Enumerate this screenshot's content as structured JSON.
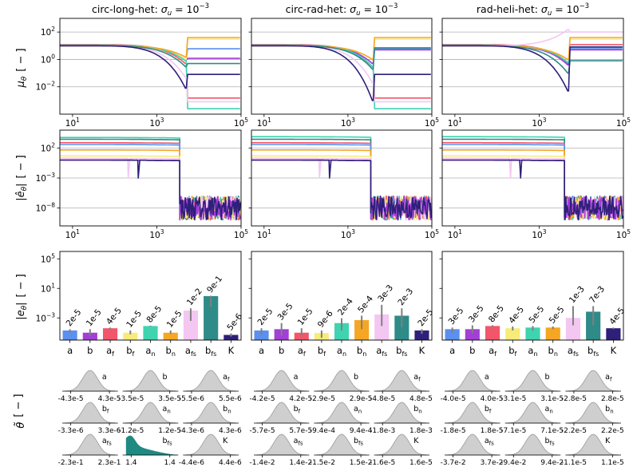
{
  "figure": {
    "columns": [
      {
        "title_prefix": "circ-long-het: ",
        "sigma_symbol": "σ",
        "sigma_sub": "u",
        "sigma_eq": " = 10",
        "sigma_exp": "−3"
      },
      {
        "title_prefix": "circ-rad-het: ",
        "sigma_symbol": "σ",
        "sigma_sub": "u",
        "sigma_eq": " = 10",
        "sigma_exp": "−3"
      },
      {
        "title_prefix": "rad-heli-het: ",
        "sigma_symbol": "σ",
        "sigma_sub": "u",
        "sigma_eq": " = 10",
        "sigma_exp": "−3"
      }
    ],
    "row_labels": {
      "mu": {
        "symbol": "μ",
        "sub": "θ",
        "unit": "[ − ]"
      },
      "ehat": {
        "symbol": "|ê",
        "sub": "θ",
        "close": "|",
        "unit": "[ − ]"
      },
      "e": {
        "symbol": "|e",
        "sub": "θ",
        "close": "|",
        "unit": "[ − ]"
      },
      "theta": {
        "symbol": "θ̃",
        "unit": "[ − ]"
      }
    }
  },
  "colors": {
    "a": "#5b8ff0",
    "b": "#a23fd6",
    "a_f": "#f2566a",
    "b_f": "#f7ec7a",
    "a_n": "#3fd3b0",
    "b_n": "#f5a623",
    "a_fs": "#f4c6f2",
    "b_fs": "#2e8b88",
    "K": "#2e1f7a",
    "grid": "#b0b0b0",
    "density_gray": "#cfcfcf",
    "density_teal": "#1f8a82"
  },
  "chart_data": [
    {
      "panel": "mu_theta",
      "type": "line",
      "log_x": true,
      "log_y": true,
      "xlim": [
        5,
        100000
      ],
      "ylim": [
        0.0001,
        1000
      ],
      "x_ticks": [
        {
          "base": "10",
          "exp": "1",
          "value": 10
        },
        {
          "base": "10",
          "exp": "3",
          "value": 1000
        },
        {
          "base": "10",
          "exp": "5",
          "value": 100000
        }
      ],
      "y_ticks": [
        {
          "base": "10",
          "exp": "2",
          "value": 100
        },
        {
          "base": "10",
          "exp": "0",
          "value": 1
        },
        {
          "base": "10",
          "exp": "−2",
          "value": 0.01
        }
      ],
      "grid": "horizontal",
      "columns": [
        {
          "switch_x": 5000,
          "series": [
            {
              "param": "a",
              "start": 10,
              "dip": 1.0,
              "end": 6
            },
            {
              "param": "b",
              "start": 11,
              "dip": 0.9,
              "end": 1.2
            },
            {
              "param": "a_f",
              "start": 12,
              "dip": 0.5,
              "end": 0.0015
            },
            {
              "param": "b_f",
              "start": 10,
              "dip": 1.0,
              "end": 30
            },
            {
              "param": "a_n",
              "start": 11,
              "dip": 0.8,
              "end": 0.00025
            },
            {
              "param": "b_n",
              "start": 10,
              "dip": 1.5,
              "end": 40
            },
            {
              "param": "a_fs",
              "start": 10,
              "dip": 0.05,
              "end": 0.0008
            },
            {
              "param": "b_fs",
              "start": 10,
              "dip": 0.3,
              "end": 0.5
            },
            {
              "param": "K",
              "start": 10,
              "dip": 0.008,
              "end": 0.08
            }
          ]
        },
        {
          "switch_x": 4000,
          "series": [
            {
              "param": "a",
              "start": 10,
              "dip": 0.5,
              "end": 6
            },
            {
              "param": "b",
              "start": 11,
              "dip": 0.5,
              "end": 5
            },
            {
              "param": "a_f",
              "start": 12,
              "dip": 0.2,
              "end": 0.0015
            },
            {
              "param": "b_f",
              "start": 10,
              "dip": 1.0,
              "end": 30
            },
            {
              "param": "a_n",
              "start": 11,
              "dip": 0.3,
              "end": 0.00025
            },
            {
              "param": "b_n",
              "start": 10,
              "dip": 1.0,
              "end": 40
            },
            {
              "param": "a_fs",
              "start": 10,
              "dip": 0.02,
              "end": 0.0008
            },
            {
              "param": "b_fs",
              "start": 10,
              "dip": 0.2,
              "end": 7
            },
            {
              "param": "K",
              "start": 10,
              "dip": 0.001,
              "end": 0.08
            }
          ]
        },
        {
          "switch_x": 5000,
          "series": [
            {
              "param": "a",
              "start": 10,
              "dip": 0.5,
              "end": 6
            },
            {
              "param": "b",
              "start": 11,
              "dip": 0.4,
              "end": 5
            },
            {
              "param": "a_f",
              "start": 12,
              "dip": 0.6,
              "end": 12
            },
            {
              "param": "b_f",
              "start": 10,
              "dip": 1.0,
              "end": 30
            },
            {
              "param": "a_n",
              "start": 11,
              "dip": 0.6,
              "end": 8
            },
            {
              "param": "b_n",
              "start": 10,
              "dip": 1.0,
              "end": 40
            },
            {
              "param": "a_fs",
              "start": 10,
              "dip": 150,
              "end": 100
            },
            {
              "param": "b_fs",
              "start": 10,
              "dip": 0.1,
              "end": 0.8
            },
            {
              "param": "K",
              "start": 10,
              "dip": 0.005,
              "end": 8
            }
          ]
        }
      ]
    },
    {
      "panel": "ehat_theta",
      "type": "line",
      "log_x": true,
      "log_y": true,
      "xlim": [
        5,
        100000
      ],
      "ylim": [
        1e-11,
        100000.0
      ],
      "x_ticks": [
        {
          "base": "10",
          "exp": "1",
          "value": 10
        },
        {
          "base": "10",
          "exp": "3",
          "value": 1000
        },
        {
          "base": "10",
          "exp": "5",
          "value": 100000
        }
      ],
      "y_ticks": [
        {
          "base": "10",
          "exp": "2",
          "value": 100
        },
        {
          "base": "10",
          "exp": "−3",
          "value": 0.001
        },
        {
          "base": "10",
          "exp": "−8",
          "value": 1e-08
        }
      ],
      "grid": "horizontal",
      "columns": [
        {
          "noise_from_x": 3500,
          "noise_range": [
            1e-10,
            1e-06
          ],
          "series": [
            {
              "param": "a_n",
              "level": 6000
            },
            {
              "param": "b_fs",
              "level": 3000
            },
            {
              "param": "a_f",
              "level": 800
            },
            {
              "param": "a",
              "level": 400
            },
            {
              "param": "b_n",
              "level": 50
            },
            {
              "param": "b_f",
              "level": 5
            },
            {
              "param": "a_fs",
              "level": 2
            },
            {
              "param": "b",
              "level": 1
            },
            {
              "param": "K",
              "level": 1
            }
          ]
        },
        {
          "noise_from_x": 3500,
          "noise_range": [
            1e-10,
            1e-06
          ],
          "series": [
            {
              "param": "a_n",
              "level": 8000
            },
            {
              "param": "b_fs",
              "level": 3000
            },
            {
              "param": "a_f",
              "level": 800
            },
            {
              "param": "a",
              "level": 400
            },
            {
              "param": "b_n",
              "level": 50
            },
            {
              "param": "b_f",
              "level": 5
            },
            {
              "param": "a_fs",
              "level": 2
            },
            {
              "param": "b",
              "level": 1
            },
            {
              "param": "K",
              "level": 1
            }
          ]
        },
        {
          "noise_from_x": 4000,
          "noise_range": [
            1e-10,
            1e-06
          ],
          "series": [
            {
              "param": "a_n",
              "level": 8000
            },
            {
              "param": "b_fs",
              "level": 3000
            },
            {
              "param": "a_f",
              "level": 800
            },
            {
              "param": "a",
              "level": 400
            },
            {
              "param": "b_n",
              "level": 50
            },
            {
              "param": "b_f",
              "level": 5
            },
            {
              "param": "a_fs",
              "level": 2
            },
            {
              "param": "b",
              "level": 1
            },
            {
              "param": "K",
              "level": 1
            }
          ]
        }
      ]
    },
    {
      "panel": "e_theta",
      "type": "bar",
      "log_y": true,
      "ylim": [
        1e-06,
        1000000.0
      ],
      "y_ticks": [
        {
          "base": "10",
          "exp": "5",
          "value": 100000
        },
        {
          "base": "10",
          "exp": "1",
          "value": 10
        },
        {
          "base": "10",
          "exp": "−3",
          "value": 0.001
        }
      ],
      "categories": [
        {
          "main": "a",
          "sub": ""
        },
        {
          "main": "b",
          "sub": ""
        },
        {
          "main": "a",
          "sub": "f"
        },
        {
          "main": "b",
          "sub": "f"
        },
        {
          "main": "a",
          "sub": "n"
        },
        {
          "main": "b",
          "sub": "n"
        },
        {
          "main": "a",
          "sub": "fs"
        },
        {
          "main": "b",
          "sub": "fs"
        },
        {
          "main": "K",
          "sub": ""
        }
      ],
      "series_colors": [
        "a",
        "b",
        "a_f",
        "b_f",
        "a_n",
        "b_n",
        "a_fs",
        "b_fs",
        "K"
      ],
      "columns": [
        {
          "values": [
            2e-05,
            1e-05,
            4e-05,
            1e-05,
            8e-05,
            1e-05,
            0.01,
            0.9,
            5e-06
          ],
          "labels": [
            "2e-5",
            "1e-5",
            "4e-5",
            "1e-5",
            "8e-5",
            "1e-5",
            "1e-2",
            "9e-1",
            "5e-6"
          ],
          "err_low": [
            1e-05,
            4e-06,
            3e-05,
            6e-06,
            7e-05,
            7e-06,
            0.0004,
            0.03,
            3e-06
          ],
          "err_high": [
            3e-05,
            3e-05,
            5e-05,
            2e-05,
            9e-05,
            2e-05,
            0.02,
            1.0,
            8e-06
          ]
        },
        {
          "values": [
            2e-05,
            3e-05,
            1e-05,
            9e-06,
            0.0002,
            0.0005,
            0.003,
            0.002,
            2e-05
          ],
          "labels": [
            "2e-5",
            "3e-5",
            "1e-5",
            "9e-6",
            "2e-4",
            "5e-4",
            "3e-3",
            "2e-3",
            "2e-5"
          ],
          "err_low": [
            6e-06,
            4e-06,
            3e-06,
            2e-06,
            2e-05,
            3e-05,
            8e-05,
            6e-05,
            7e-06
          ],
          "err_high": [
            4e-05,
            0.0002,
            4e-05,
            2e-05,
            0.0009,
            0.002,
            0.06,
            0.02,
            3e-05
          ]
        },
        {
          "values": [
            3e-05,
            3e-05,
            8e-05,
            4e-05,
            5e-05,
            5e-05,
            0.001,
            0.007,
            4e-05
          ],
          "labels": [
            "3e-5",
            "3e-5",
            "8e-5",
            "4e-5",
            "5e-5",
            "5e-5",
            "1e-3",
            "7e-3",
            "4e-5"
          ],
          "err_low": [
            1e-05,
            8e-06,
            6e-05,
            2e-05,
            2e-05,
            3e-05,
            0.0001,
            0.0001,
            3e-05
          ],
          "err_high": [
            5e-05,
            0.0001,
            0.0001,
            7e-05,
            8e-05,
            7e-05,
            0.04,
            0.04,
            5e-05
          ]
        }
      ]
    },
    {
      "panel": "theta_tilde",
      "type": "area",
      "order": [
        "a",
        "b",
        "a_f",
        "b_f",
        "a_n",
        "b_n",
        "a_fs",
        "b_fs",
        "K"
      ],
      "columns": [
        {
          "cells": [
            {
              "name": "a",
              "sub": "",
              "lo": "-4.3e-5",
              "hi": "4.3e-5"
            },
            {
              "name": "b",
              "sub": "",
              "lo": "-3.5e-5",
              "hi": "3.5e-5"
            },
            {
              "name": "a",
              "sub": "f",
              "lo": "-5.5e-6",
              "hi": "5.5e-6"
            },
            {
              "name": "b",
              "sub": "f",
              "lo": "-3.3e-6",
              "hi": "3.3e-6"
            },
            {
              "name": "a",
              "sub": "n",
              "lo": "-1.2e-5",
              "hi": "1.2e-5"
            },
            {
              "name": "b",
              "sub": "n",
              "lo": "-4.3e-6",
              "hi": "4.3e-6"
            },
            {
              "name": "a",
              "sub": "fs",
              "lo": "-2.3e-1",
              "hi": "2.3e-1"
            },
            {
              "name": "b",
              "sub": "fs",
              "lo": "1.4",
              "hi": "1.4",
              "skewed": true
            },
            {
              "name": "K",
              "sub": "",
              "lo": "-4.4e-6",
              "hi": "4.4e-6"
            }
          ]
        },
        {
          "cells": [
            {
              "name": "a",
              "sub": "",
              "lo": "-4.2e-5",
              "hi": "4.2e-5"
            },
            {
              "name": "b",
              "sub": "",
              "lo": "-2.9e-5",
              "hi": "2.9e-5"
            },
            {
              "name": "a",
              "sub": "f",
              "lo": "-4.8e-5",
              "hi": "4.8e-5"
            },
            {
              "name": "b",
              "sub": "f",
              "lo": "-5.7e-5",
              "hi": "5.7e-5"
            },
            {
              "name": "a",
              "sub": "n",
              "lo": "-9.4e-4",
              "hi": "9.4e-4"
            },
            {
              "name": "b",
              "sub": "n",
              "lo": "-1.8e-3",
              "hi": "1.8e-3"
            },
            {
              "name": "a",
              "sub": "fs",
              "lo": "-1.4e-2",
              "hi": "1.4e-2"
            },
            {
              "name": "b",
              "sub": "fs",
              "lo": "-1.5e-2",
              "hi": "1.5e-2"
            },
            {
              "name": "K",
              "sub": "",
              "lo": "-1.6e-5",
              "hi": "1.6e-5"
            }
          ]
        },
        {
          "cells": [
            {
              "name": "a",
              "sub": "",
              "lo": "-4.0e-5",
              "hi": "4.0e-5"
            },
            {
              "name": "b",
              "sub": "",
              "lo": "-3.1e-5",
              "hi": "3.1e-5"
            },
            {
              "name": "a",
              "sub": "f",
              "lo": "-2.8e-5",
              "hi": "2.8e-5"
            },
            {
              "name": "b",
              "sub": "f",
              "lo": "-1.8e-5",
              "hi": "1.8e-5"
            },
            {
              "name": "a",
              "sub": "n",
              "lo": "-7.1e-5",
              "hi": "7.1e-5"
            },
            {
              "name": "b",
              "sub": "n",
              "lo": "-2.2e-5",
              "hi": "2.2e-5"
            },
            {
              "name": "a",
              "sub": "fs",
              "lo": "-3.7e-2",
              "hi": "3.7e-2"
            },
            {
              "name": "b",
              "sub": "fs",
              "lo": "-9.4e-2",
              "hi": "9.4e-2"
            },
            {
              "name": "K",
              "sub": "",
              "lo": "-1.1e-5",
              "hi": "1.1e-5"
            }
          ]
        }
      ]
    }
  ]
}
